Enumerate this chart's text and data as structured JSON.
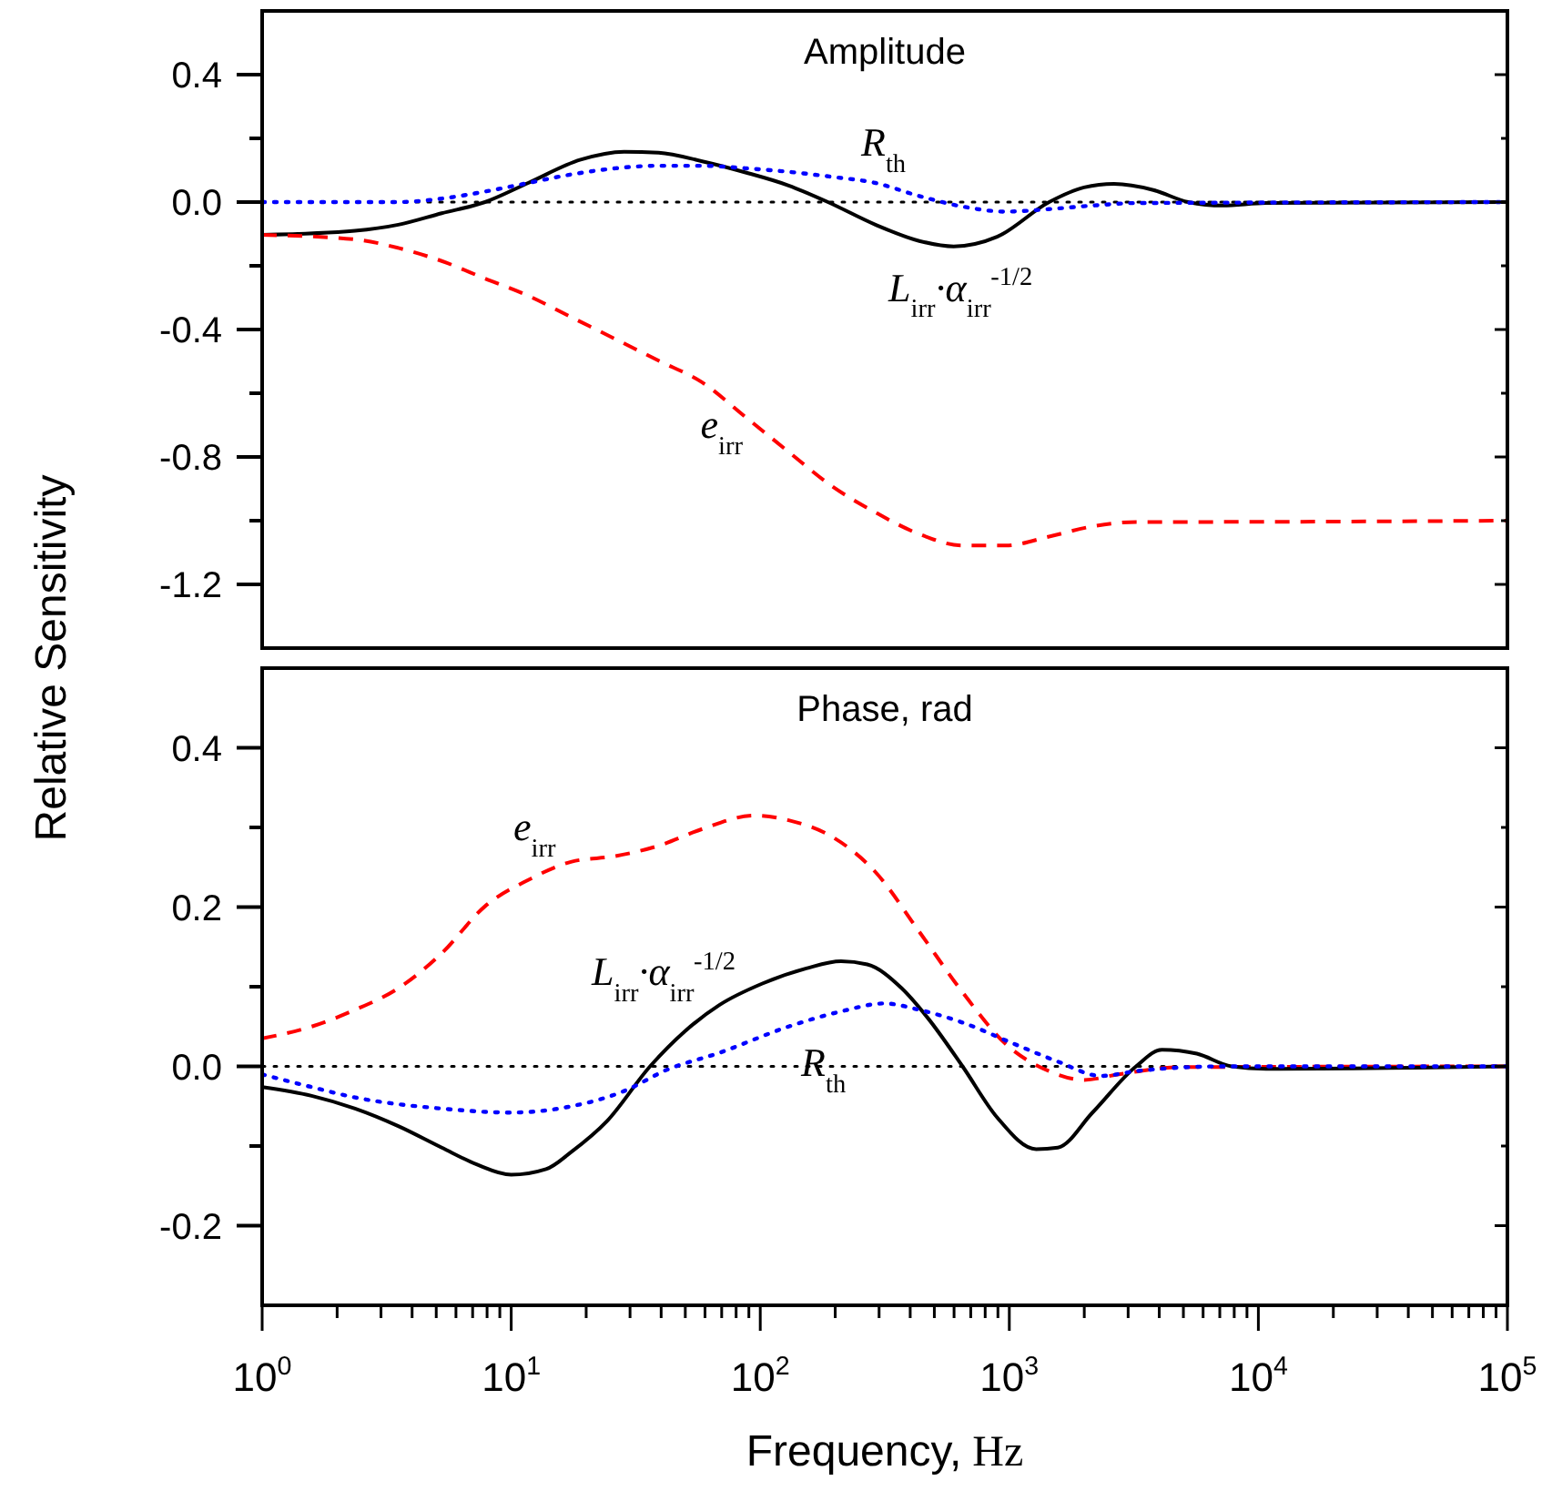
{
  "chart_data": [
    {
      "type": "line",
      "title": "Amplitude",
      "ylabel": "Relative Sensitivity",
      "log": "x",
      "xlim": [
        1,
        100000
      ],
      "ylim": [
        -1.4,
        0.6
      ],
      "tick_labels": "y",
      "grid": false,
      "yticks": [
        {
          "value": -1.2,
          "label": "-1.2"
        },
        {
          "value": -1.0,
          "label": null
        },
        {
          "value": -0.8,
          "label": "-0.8"
        },
        {
          "value": -0.6,
          "label": null
        },
        {
          "value": -0.4,
          "label": "-0.4"
        },
        {
          "value": -0.2,
          "label": null
        },
        {
          "value": 0,
          "label": "0.0"
        },
        {
          "value": 0.2,
          "label": null
        },
        {
          "value": 0.4,
          "label": "0.4"
        }
      ],
      "ref_lines": [
        {
          "axis": "y",
          "value": 0,
          "color": "#000000",
          "line_style": "dotted"
        }
      ],
      "series": [
        {
          "name": "L$_{irr}$·α$_{irr}$$^{-1/2}$",
          "color": "#000000",
          "line_style": "solid",
          "x": [
            1,
            2.36,
            3.52,
            5.26,
            7.85,
            11.7,
            19,
            28.4,
            39.1,
            58.5,
            87.3,
            130,
            187,
            290,
            435,
            598,
            893,
            1445,
            1995,
            2630,
            3784,
            5224,
            7194,
            10715,
            100000
          ],
          "values": [
            -0.103,
            -0.09,
            -0.071,
            -0.035,
            0,
            0.06,
            0.133,
            0.158,
            0.155,
            0.128,
            0.093,
            0.052,
            0,
            -0.071,
            -0.122,
            -0.139,
            -0.109,
            0,
            0.046,
            0.057,
            0.038,
            0,
            -0.011,
            -0.003,
            0
          ]
        },
        {
          "name": "e$_{irr}$",
          "color": "#ff0000",
          "line_style": "dashed",
          "x": [
            1,
            2.36,
            3.52,
            5.26,
            7.85,
            11.7,
            17.5,
            26.2,
            39.1,
            58.5,
            87.3,
            130,
            195,
            290,
            435,
            649,
            968,
            1445,
            2158,
            3228,
            4819,
            100000
          ],
          "values": [
            -0.103,
            -0.117,
            -0.144,
            -0.185,
            -0.24,
            -0.294,
            -0.362,
            -0.43,
            -0.498,
            -0.566,
            -0.675,
            -0.784,
            -0.893,
            -0.974,
            -1.042,
            -1.078,
            -1.078,
            -1.05,
            -1.018,
            -1.004,
            -1.004,
            -1.0
          ]
        },
        {
          "name": "R$_{th}$",
          "color": "#0000ff",
          "line_style": "dotted",
          "x": [
            1,
            3.52,
            5.26,
            7.85,
            11.7,
            17.5,
            26.2,
            39.1,
            58.5,
            87.3,
            130,
            195,
            290,
            435,
            649,
            968,
            1445,
            2158,
            3228,
            100000
          ],
          "values": [
            0,
            0,
            0.011,
            0.033,
            0.06,
            0.087,
            0.106,
            0.114,
            0.114,
            0.106,
            0.095,
            0.079,
            0.06,
            0.019,
            -0.014,
            -0.03,
            -0.022,
            -0.011,
            -0.003,
            0
          ]
        }
      ]
    },
    {
      "type": "line",
      "title": "Phase, rad",
      "xlabel": "Frequency, Hz",
      "log": "x",
      "xlim": [
        1,
        100000
      ],
      "ylim": [
        -0.3,
        0.5
      ],
      "grid": false,
      "xticks": [
        {
          "value": 1,
          "label": "10$^{0}$"
        },
        {
          "value": 2,
          "label": null
        },
        {
          "value": 3,
          "label": null
        },
        {
          "value": 4,
          "label": null
        },
        {
          "value": 5,
          "label": null
        },
        {
          "value": 6,
          "label": null
        },
        {
          "value": 7,
          "label": null
        },
        {
          "value": 8,
          "label": null
        },
        {
          "value": 9,
          "label": null
        },
        {
          "value": 10,
          "label": "10$^{1}$"
        },
        {
          "value": 20,
          "label": null
        },
        {
          "value": 30,
          "label": null
        },
        {
          "value": 40,
          "label": null
        },
        {
          "value": 50,
          "label": null
        },
        {
          "value": 60,
          "label": null
        },
        {
          "value": 70,
          "label": null
        },
        {
          "value": 80,
          "label": null
        },
        {
          "value": 90,
          "label": null
        },
        {
          "value": 100,
          "label": "10$^{2}$"
        },
        {
          "value": 200,
          "label": null
        },
        {
          "value": 300,
          "label": null
        },
        {
          "value": 400,
          "label": null
        },
        {
          "value": 500,
          "label": null
        },
        {
          "value": 600,
          "label": null
        },
        {
          "value": 700,
          "label": null
        },
        {
          "value": 800,
          "label": null
        },
        {
          "value": 900,
          "label": null
        },
        {
          "value": 1000,
          "label": "10$^{3}$"
        },
        {
          "value": 2000,
          "label": null
        },
        {
          "value": 3000,
          "label": null
        },
        {
          "value": 4000,
          "label": null
        },
        {
          "value": 5000,
          "label": null
        },
        {
          "value": 6000,
          "label": null
        },
        {
          "value": 7000,
          "label": null
        },
        {
          "value": 8000,
          "label": null
        },
        {
          "value": 9000,
          "label": null
        },
        {
          "value": 10000,
          "label": "10$^{4}$"
        },
        {
          "value": 20000,
          "label": null
        },
        {
          "value": 30000,
          "label": null
        },
        {
          "value": 40000,
          "label": null
        },
        {
          "value": 50000,
          "label": null
        },
        {
          "value": 60000,
          "label": null
        },
        {
          "value": 70000,
          "label": null
        },
        {
          "value": 80000,
          "label": null
        },
        {
          "value": 90000,
          "label": null
        },
        {
          "value": 100000,
          "label": "10$^{5}$"
        }
      ],
      "yticks": [
        {
          "value": -0.2,
          "label": "-0.2"
        },
        {
          "value": -0.1,
          "label": null
        },
        {
          "value": 0,
          "label": "0.0"
        },
        {
          "value": 0.1,
          "label": null
        },
        {
          "value": 0.2,
          "label": "0.2"
        },
        {
          "value": 0.3,
          "label": null
        },
        {
          "value": 0.4,
          "label": "0.4"
        }
      ],
      "ref_lines": [
        {
          "axis": "y",
          "value": 0,
          "color": "#000000",
          "line_style": "dotted"
        }
      ],
      "series": [
        {
          "name": "e$_{irr}$",
          "color": "#ff0000",
          "line_style": "dashed",
          "x": [
            1,
            1.58,
            2.36,
            3.52,
            5.26,
            7.85,
            11.7,
            17.5,
            26.2,
            39.1,
            58.5,
            94.6,
            130,
            195,
            290,
            435,
            649,
            968,
            1445,
            1995,
            2748,
            4819,
            100000
          ],
          "values": [
            0.035,
            0.05,
            0.071,
            0.098,
            0.142,
            0.201,
            0.234,
            0.257,
            0.264,
            0.277,
            0.298,
            0.315,
            0.309,
            0.288,
            0.244,
            0.169,
            0.093,
            0.028,
            -0.006,
            -0.017,
            -0.01,
            -0.001,
            0
          ]
        },
        {
          "name": "L$_{irr}$·α$_{irr}$$^{-1/2}$",
          "color": "#000000",
          "line_style": "solid",
          "x": [
            1,
            1.58,
            2.36,
            3.52,
            5.26,
            7.26,
            10,
            13.8,
            17.5,
            24.2,
            36.1,
            49.8,
            68.5,
            102,
            153,
            211,
            269,
            370,
            470,
            649,
            893,
            1282,
            1567,
            2158,
            3228,
            4102,
            5662,
            7798,
            10740,
            100000
          ],
          "values": [
            -0.026,
            -0.037,
            -0.053,
            -0.075,
            -0.102,
            -0.123,
            -0.136,
            -0.129,
            -0.107,
            -0.069,
            0,
            0.044,
            0.077,
            0.104,
            0.123,
            0.132,
            0.128,
            0.098,
            0.061,
            0,
            -0.064,
            -0.104,
            -0.102,
            -0.058,
            0,
            0.021,
            0.016,
            0,
            -0.003,
            0
          ]
        },
        {
          "name": "R$_{th}$",
          "color": "#0000ff",
          "line_style": "dotted",
          "x": [
            1,
            1.58,
            2.36,
            5.26,
            10,
            17.5,
            28.4,
            42.4,
            68.5,
            130,
            211,
            315,
            435,
            649,
            1050,
            1567,
            2339,
            3228,
            7194,
            100000
          ],
          "values": [
            -0.01,
            -0.026,
            -0.039,
            -0.053,
            -0.058,
            -0.05,
            -0.031,
            -0.004,
            0.017,
            0.05,
            0.069,
            0.079,
            0.071,
            0.055,
            0.028,
            0.006,
            -0.012,
            -0.006,
            0,
            0
          ]
        }
      ]
    }
  ]
}
